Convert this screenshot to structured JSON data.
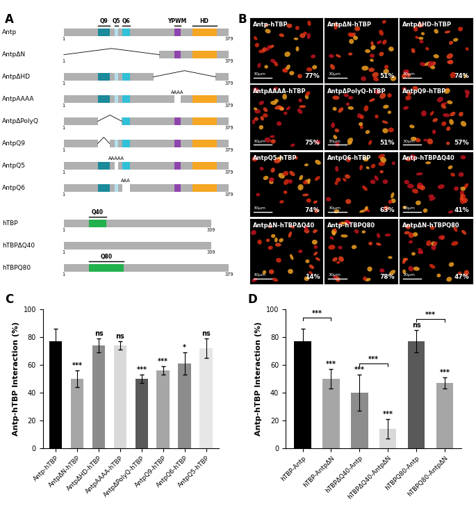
{
  "diagram": {
    "label": "A",
    "groups": [
      {
        "domains": [
          {
            "name": "Q9",
            "start": 79,
            "end": 106,
            "color": "#1b8a9a"
          },
          {
            "name": "Q5",
            "start": 117,
            "end": 126,
            "color": "#b3e0ee"
          },
          {
            "name": "Q6",
            "start": 135,
            "end": 152,
            "color": "#30c0d8"
          },
          {
            "name": "YPWM",
            "start": 254,
            "end": 268,
            "color": "#8e44ad"
          },
          {
            "name": "HD",
            "start": 295,
            "end": 351,
            "color": "#f5a623"
          }
        ],
        "constructs": [
          {
            "name": "Antp",
            "length": 379,
            "domains": [
              "Q9",
              "Q5",
              "Q6",
              "YPWM",
              "HD"
            ],
            "labeled": true
          },
          {
            "name": "AntpΔN",
            "length": 379,
            "domains": [
              "YPWM",
              "HD"
            ],
            "deleted": [
              1,
              220
            ]
          },
          {
            "name": "AntpΔHD",
            "length": 379,
            "domains": [
              "Q9",
              "Q5",
              "Q6"
            ],
            "deleted": [
              206,
              349
            ]
          },
          {
            "name": "AntpAAAA",
            "length": 379,
            "domains": [
              "Q9",
              "Q5",
              "Q6",
              "HD"
            ],
            "mutation": {
              "label": "AAAA",
              "start": 254,
              "end": 268
            }
          },
          {
            "name": "AntpΔPolyQ",
            "length": 379,
            "domains": [
              "Q6",
              "YPWM",
              "HD"
            ],
            "deleted": [
              79,
              134
            ]
          },
          {
            "name": "AntpQ9",
            "length": 379,
            "domains": [
              "Q5",
              "Q6",
              "YPWM",
              "HD"
            ],
            "deleted": [
              79,
              106
            ]
          },
          {
            "name": "AntpQ5",
            "length": 379,
            "domains": [
              "Q9",
              "Q6",
              "YPWM",
              "HD"
            ],
            "mutation": {
              "label": "AAAAA",
              "start": 117,
              "end": 126
            }
          },
          {
            "name": "AntpQ6",
            "length": 379,
            "domains": [
              "Q9",
              "Q5",
              "YPWM",
              "HD"
            ],
            "mutation": {
              "label": "AAA",
              "start": 135,
              "end": 152
            }
          }
        ]
      },
      {
        "domains": [
          {
            "name": "Q40",
            "start": 58,
            "end": 98,
            "color": "#22b14c"
          },
          {
            "name": "Q80",
            "start": 58,
            "end": 138,
            "color": "#22b14c"
          }
        ],
        "constructs": [
          {
            "name": "hTBP",
            "length": 339,
            "domains": [
              "Q40"
            ],
            "labeled": true
          },
          {
            "name": "hTBPΔQ40",
            "length": 339,
            "domains": []
          },
          {
            "name": "hTBPQ80",
            "length": 379,
            "domains": [
              "Q80"
            ],
            "labeled": true
          }
        ]
      }
    ]
  },
  "images": {
    "label": "B",
    "scale_bar": "30μm",
    "panels": [
      {
        "name": "Antp-hTBP",
        "percent": "77%"
      },
      {
        "name": "AntpΔN-hTBP",
        "percent": "51%"
      },
      {
        "name": "AntpΔHD-hTBP",
        "percent": "74%"
      },
      {
        "name": "AntpAAAA-hTBP",
        "percent": "75%"
      },
      {
        "name": "AntpΔPolyQ-hTBP",
        "percent": "51%"
      },
      {
        "name": "AntpQ9-hTBP",
        "percent": "57%"
      },
      {
        "name": "AntpQ5-hTBP",
        "percent": "74%"
      },
      {
        "name": "AntpQ6-hTBP",
        "percent": "63%"
      },
      {
        "name": "Antp-hTBPΔQ40",
        "percent": "41%"
      },
      {
        "name": "AntpΔN-hTBPΔQ40",
        "percent": "14%"
      },
      {
        "name": "Antp-hTBPQ80",
        "percent": "78%"
      },
      {
        "name": "AntpΔN-hTBPQ80",
        "percent": "47%"
      }
    ]
  },
  "chart_data": [
    {
      "type": "bar",
      "label": "C",
      "y_label": "Antp-hTBP Interaction (%)",
      "categories": [
        "Antp-hTBP",
        "AntpΔN-hTBP",
        "AntpΔHD-hTBP",
        "AntpAAAA-hTBP",
        "AntpΔPolyQ-hTBP",
        "AntpQ9-hTBP",
        "AntpQ6-hTBP",
        "AntpQ5-hTBP"
      ],
      "values": [
        77,
        50,
        74,
        74,
        50,
        56,
        61,
        72
      ],
      "errors": [
        9,
        6,
        5,
        3,
        3,
        3,
        8,
        7
      ],
      "annotations": [
        null,
        "***",
        "ns",
        "ns",
        "***",
        "***",
        "*",
        "ns"
      ],
      "colors": [
        "#000000",
        "#a6a6a6",
        "#8c8c8c",
        "#d9d9d9",
        "#595959",
        "#a6a6a6",
        "#8c8c8c",
        "#e6e6e6"
      ],
      "ylim": [
        0,
        100
      ],
      "yticks": [
        0,
        20,
        40,
        60,
        80,
        100
      ]
    },
    {
      "type": "bar",
      "label": "D",
      "y_label": "Antp-hTBP Interaction (%)",
      "categories": [
        "hTBP-Antp",
        "hTBP-AntpΔN",
        "hTBPΔQ40-Antp",
        "hTBPΔQ40-AntpΔN",
        "hTBPQ80-Antp",
        "hTBPQ80-AntpΔN"
      ],
      "values": [
        77,
        50,
        40,
        14,
        77,
        47
      ],
      "errors": [
        9,
        7,
        13,
        7,
        8,
        4
      ],
      "annotations": [
        null,
        "***",
        "***",
        "***",
        "ns",
        "***"
      ],
      "brackets": [
        {
          "between": [
            0,
            1
          ],
          "label": "***"
        },
        {
          "between": [
            2,
            3
          ],
          "label": "***"
        },
        {
          "between": [
            4,
            5
          ],
          "label": "***"
        }
      ],
      "colors": [
        "#000000",
        "#a6a6a6",
        "#8c8c8c",
        "#d9d9d9",
        "#595959",
        "#a6a6a6"
      ],
      "ylim": [
        0,
        100
      ],
      "yticks": [
        0,
        20,
        40,
        60,
        80,
        100
      ]
    }
  ]
}
